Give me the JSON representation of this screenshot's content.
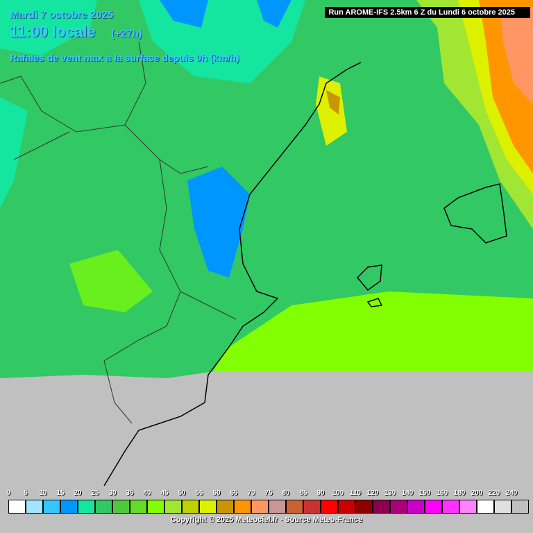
{
  "header": {
    "date": "Mardi 7 octobre 2025",
    "hour": "11:00 locale",
    "lead": "(+27h)",
    "parameter": "Rafales de vent max à la surface depuis 0h (km/h)",
    "run": "Run AROME-IFS 2.5km 6 Z du Lundi 6 octobre 2025"
  },
  "legend": {
    "items": [
      {
        "label": "0",
        "color": "#ffffff"
      },
      {
        "label": "5",
        "color": "#a0e6ff"
      },
      {
        "label": "10",
        "color": "#32c8ff"
      },
      {
        "label": "15",
        "color": "#0096ff"
      },
      {
        "label": "20",
        "color": "#14e6a0"
      },
      {
        "label": "25",
        "color": "#32c864"
      },
      {
        "label": "30",
        "color": "#50c83c"
      },
      {
        "label": "35",
        "color": "#64dc28"
      },
      {
        "label": "40",
        "color": "#82ff00"
      },
      {
        "label": "45",
        "color": "#a0e632"
      },
      {
        "label": "50",
        "color": "#bed200"
      },
      {
        "label": "55",
        "color": "#dcf000"
      },
      {
        "label": "60",
        "color": "#c89600"
      },
      {
        "label": "65",
        "color": "#ff9600"
      },
      {
        "label": "70",
        "color": "#ff9664"
      },
      {
        "label": "75",
        "color": "#c89696"
      },
      {
        "label": "80",
        "color": "#c86432"
      },
      {
        "label": "85",
        "color": "#c83232"
      },
      {
        "label": "90",
        "color": "#ff0000"
      },
      {
        "label": "100",
        "color": "#c80000"
      },
      {
        "label": "110",
        "color": "#8c0000"
      },
      {
        "label": "120",
        "color": "#8c0050"
      },
      {
        "label": "130",
        "color": "#aa0078"
      },
      {
        "label": "140",
        "color": "#c800c8"
      },
      {
        "label": "150",
        "color": "#ff00ff"
      },
      {
        "label": "160",
        "color": "#ff32ff"
      },
      {
        "label": "180",
        "color": "#ff82ff"
      },
      {
        "label": "200",
        "color": "#ffffff"
      },
      {
        "label": "220",
        "color": "#e0e0e0"
      },
      {
        "label": "240",
        "color": "#c0c0c0"
      }
    ]
  },
  "footer": {
    "copyright": "Copyright © 2025 Meteociel.fr - Source Meteo-France"
  }
}
